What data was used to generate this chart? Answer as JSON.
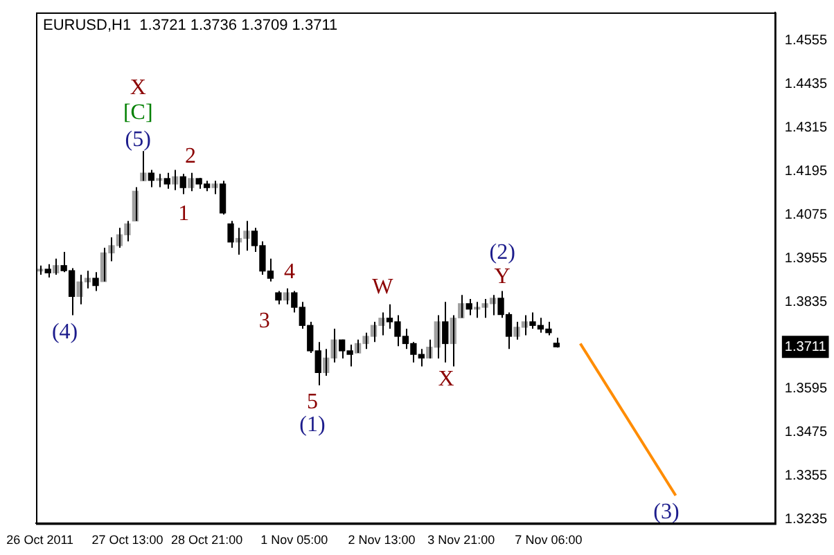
{
  "chart_data": {
    "type": "candlestick",
    "title": "EURUSD,H1  1.3721 1.3736 1.3709 1.3711",
    "categories": [
      "26 Oct 2011",
      null,
      null,
      null,
      null,
      null,
      null,
      null,
      null,
      null,
      null,
      "27 Oct 13:00",
      null,
      null,
      null,
      null,
      null,
      null,
      null,
      null,
      null,
      "28 Oct 21:00",
      null,
      null,
      null,
      null,
      null,
      null,
      null,
      null,
      null,
      null,
      "1 Nov 05:00",
      null,
      null,
      null,
      null,
      null,
      null,
      null,
      null,
      null,
      null,
      "2 Nov 13:00",
      null,
      null,
      null,
      null,
      null,
      null,
      null,
      null,
      null,
      "3 Nov 21:00",
      null,
      null,
      null,
      null,
      null,
      null,
      null,
      null,
      null,
      null,
      "7 Nov 06:00",
      null,
      null,
      null,
      null,
      null,
      null,
      null,
      null,
      null,
      null,
      null,
      null,
      null,
      null,
      null,
      null,
      null,
      null,
      null,
      null,
      null,
      null,
      null,
      null,
      null,
      null,
      null,
      null
    ],
    "ohlc": [
      [
        1.392,
        1.3935,
        1.391,
        1.3925
      ],
      [
        1.3925,
        1.3939,
        1.3902,
        1.3915
      ],
      [
        1.3915,
        1.3954,
        1.391,
        1.3935
      ],
      [
        1.3935,
        1.3973,
        1.3917,
        1.3921
      ],
      [
        1.3921,
        1.3928,
        1.3798,
        1.385
      ],
      [
        1.385,
        1.391,
        1.3828,
        1.389
      ],
      [
        1.389,
        1.3921,
        1.3872,
        1.39
      ],
      [
        1.39,
        1.3917,
        1.3865,
        1.388
      ],
      [
        1.3891,
        1.3984,
        1.3891,
        1.397
      ],
      [
        1.397,
        1.4013,
        1.3947,
        1.399
      ],
      [
        1.399,
        1.4039,
        1.3984,
        1.402
      ],
      [
        1.402,
        1.4058,
        1.4002,
        1.405
      ],
      [
        1.4058,
        1.4151,
        1.4058,
        1.414
      ],
      [
        1.4169,
        1.4251,
        1.4169,
        1.419
      ],
      [
        1.419,
        1.4199,
        1.4151,
        1.417
      ],
      [
        1.417,
        1.4188,
        1.4151,
        1.4175
      ],
      [
        1.4175,
        1.4191,
        1.4147,
        1.416
      ],
      [
        1.416,
        1.4199,
        1.4143,
        1.418
      ],
      [
        1.418,
        1.4188,
        1.4132,
        1.415
      ],
      [
        1.415,
        1.4191,
        1.414,
        1.4175
      ],
      [
        1.4175,
        1.4177,
        1.4147,
        1.416
      ],
      [
        1.416,
        1.4169,
        1.414,
        1.415
      ],
      [
        1.415,
        1.4169,
        1.4132,
        1.416
      ],
      [
        1.416,
        1.4169,
        1.4076,
        1.408
      ],
      [
        1.405,
        1.4058,
        1.3984,
        1.4
      ],
      [
        1.4,
        1.4039,
        1.3965,
        1.401
      ],
      [
        1.401,
        1.4058,
        1.3976,
        1.403
      ],
      [
        1.403,
        1.4039,
        1.3973,
        1.399
      ],
      [
        1.399,
        1.4002,
        1.391,
        1.392
      ],
      [
        1.392,
        1.3954,
        1.3891,
        1.39
      ],
      [
        1.386,
        1.3865,
        1.3828,
        1.384
      ],
      [
        1.384,
        1.3872,
        1.3828,
        1.386
      ],
      [
        1.386,
        1.3865,
        1.3806,
        1.382
      ],
      [
        1.382,
        1.3835,
        1.3761,
        1.377
      ],
      [
        1.377,
        1.378,
        1.3694,
        1.37
      ],
      [
        1.37,
        1.3724,
        1.3605,
        1.364
      ],
      [
        1.364,
        1.3705,
        1.3631,
        1.368
      ],
      [
        1.368,
        1.3761,
        1.3668,
        1.373
      ],
      [
        1.373,
        1.3731,
        1.3679,
        1.37
      ],
      [
        1.37,
        1.3717,
        1.3657,
        1.369
      ],
      [
        1.3694,
        1.3731,
        1.3694,
        1.372
      ],
      [
        1.372,
        1.375,
        1.3705,
        1.374
      ],
      [
        1.374,
        1.378,
        1.3724,
        1.377
      ],
      [
        1.377,
        1.3806,
        1.3743,
        1.379
      ],
      [
        1.379,
        1.3828,
        1.3761,
        1.378
      ],
      [
        1.378,
        1.3798,
        1.3713,
        1.374
      ],
      [
        1.374,
        1.3761,
        1.3705,
        1.372
      ],
      [
        1.372,
        1.3724,
        1.3668,
        1.369
      ],
      [
        1.369,
        1.3705,
        1.3657,
        1.368
      ],
      [
        1.368,
        1.3731,
        1.3679,
        1.371
      ],
      [
        1.371,
        1.3798,
        1.3679,
        1.378
      ],
      [
        1.378,
        1.3835,
        1.3668,
        1.372
      ],
      [
        1.372,
        1.3798,
        1.3657,
        1.379
      ],
      [
        1.3791,
        1.3854,
        1.3791,
        1.383
      ],
      [
        1.383,
        1.3843,
        1.3798,
        1.3815
      ],
      [
        1.3815,
        1.3835,
        1.3791,
        1.382
      ],
      [
        1.382,
        1.3843,
        1.3791,
        1.383
      ],
      [
        1.383,
        1.3854,
        1.3798,
        1.3845
      ],
      [
        1.3845,
        1.3865,
        1.3791,
        1.38
      ],
      [
        1.38,
        1.3806,
        1.3705,
        1.374
      ],
      [
        1.374,
        1.378,
        1.3731,
        1.3765
      ],
      [
        1.3765,
        1.3798,
        1.3743,
        1.378
      ],
      [
        1.378,
        1.3806,
        1.3761,
        1.377
      ],
      [
        1.377,
        1.3791,
        1.375,
        1.376
      ],
      [
        1.376,
        1.378,
        1.3743,
        1.375
      ],
      [
        1.3721,
        1.3736,
        1.3709,
        1.3711
      ],
      null,
      null,
      null,
      null,
      null,
      null,
      null,
      null,
      null,
      null,
      null,
      null,
      null,
      null,
      null,
      null,
      null,
      null,
      null,
      null,
      null,
      null,
      null,
      null,
      null,
      null,
      null
    ],
    "series": [
      {
        "type": "line",
        "color": "#ff8c00",
        "values": [
          null,
          null,
          null,
          null,
          null,
          null,
          null,
          null,
          null,
          null,
          null,
          null,
          null,
          null,
          null,
          null,
          null,
          null,
          null,
          null,
          null,
          null,
          null,
          null,
          null,
          null,
          null,
          null,
          null,
          null,
          null,
          null,
          null,
          null,
          null,
          null,
          null,
          null,
          null,
          null,
          null,
          null,
          null,
          null,
          null,
          null,
          null,
          null,
          null,
          null,
          null,
          null,
          null,
          null,
          null,
          null,
          null,
          null,
          null,
          null,
          null,
          null,
          null,
          null,
          null,
          null,
          null,
          null,
          1.372,
          null,
          null,
          null,
          null,
          null,
          null,
          null,
          null,
          null,
          null,
          null,
          1.3301,
          null,
          null,
          null,
          null,
          null,
          null,
          null,
          null,
          null,
          null,
          null,
          null
        ]
      }
    ],
    "ylim": [
      1.3224,
      1.4633
    ],
    "yticks": [
      1.4555,
      1.4435,
      1.4315,
      1.4195,
      1.4075,
      1.3955,
      1.3835,
      1.3711,
      1.3595,
      1.3475,
      1.3355,
      1.3235
    ],
    "grid": false,
    "legend": false,
    "annotations": [
      "X",
      "[C]",
      "(5)",
      "2",
      "1",
      "(4)",
      "4",
      "3",
      "5",
      "(1)",
      "W",
      "X",
      "(2)",
      "Y",
      "(3)"
    ]
  }
}
